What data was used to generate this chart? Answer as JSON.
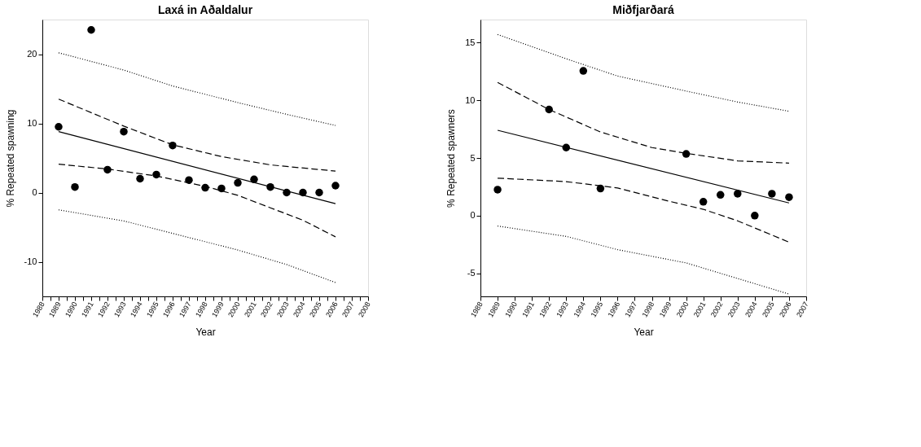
{
  "chart_data": [
    {
      "type": "scatter",
      "title": "Laxá in Aðaldalur",
      "xlabel": "Year",
      "ylabel": "% Repeated spawning",
      "xlim": [
        1988,
        2008
      ],
      "ylim": [
        -15,
        25
      ],
      "xticks": [
        1988,
        {
          "value": 1988.5,
          "label": null
        },
        1989,
        {
          "value": 1989.5,
          "label": null
        },
        1990,
        {
          "value": 1990.5,
          "label": null
        },
        1991,
        {
          "value": 1991.5,
          "label": null
        },
        1992,
        {
          "value": 1992.5,
          "label": null
        },
        1993,
        {
          "value": 1993.5,
          "label": null
        },
        1994,
        {
          "value": 1994.5,
          "label": null
        },
        1995,
        {
          "value": 1995.5,
          "label": null
        },
        1996,
        {
          "value": 1996.5,
          "label": null
        },
        1997,
        {
          "value": 1997.5,
          "label": null
        },
        1998,
        {
          "value": 1998.5,
          "label": null
        },
        1999,
        {
          "value": 1999.5,
          "label": null
        },
        2000,
        {
          "value": 2000.5,
          "label": null
        },
        2001,
        {
          "value": 2001.5,
          "label": null
        },
        2002,
        {
          "value": 2002.5,
          "label": null
        },
        2003,
        {
          "value": 2003.5,
          "label": null
        },
        2004,
        {
          "value": 2004.5,
          "label": null
        },
        2005,
        {
          "value": 2005.5,
          "label": null
        },
        2006,
        {
          "value": 2006.5,
          "label": null
        },
        2007,
        {
          "value": 2007.5,
          "label": null
        },
        2008
      ],
      "yticks": [
        -10,
        0,
        10,
        20
      ],
      "grid": false,
      "series": [
        {
          "marker": "circle",
          "color": "#000000",
          "x": [
            1989,
            1990,
            1991,
            1992,
            1993,
            1994,
            1995,
            1996,
            1997,
            1998,
            1999,
            2000,
            2001,
            2002,
            2003,
            2004,
            2005,
            2006
          ],
          "values": [
            9.5,
            0.8,
            23.5,
            3.3,
            8.8,
            2.0,
            2.6,
            6.8,
            1.8,
            0.7,
            0.6,
            1.4,
            1.9,
            0.8,
            0.0,
            0.0,
            0.0,
            1.0
          ]
        },
        {
          "type": "line",
          "marker": "none",
          "line_style": "solid",
          "color": "#000000",
          "x": [
            1989,
            2006
          ],
          "values": [
            8.8,
            -1.6
          ]
        },
        {
          "type": "line",
          "marker": "none",
          "line_style": "dashed",
          "color": "#000000",
          "x": [
            1989,
            1993,
            1996,
            1999,
            2002,
            2006
          ],
          "values": [
            13.5,
            9.6,
            6.9,
            5.2,
            4.0,
            3.1
          ]
        },
        {
          "type": "line",
          "marker": "none",
          "line_style": "dashed",
          "color": "#000000",
          "x": [
            1989,
            1992,
            1995,
            1998,
            2000,
            2002,
            2004,
            2006
          ],
          "values": [
            4.1,
            3.4,
            2.4,
            0.9,
            -0.4,
            -2.2,
            -4.0,
            -6.4
          ]
        },
        {
          "type": "line",
          "marker": "none",
          "line_style": "dotted",
          "color": "#000000",
          "x": [
            1989,
            1993,
            1996,
            2000,
            2003,
            2006
          ],
          "values": [
            20.2,
            17.7,
            15.4,
            13.0,
            11.3,
            9.7
          ]
        },
        {
          "type": "line",
          "marker": "none",
          "line_style": "dotted",
          "color": "#000000",
          "x": [
            1989,
            1993,
            1996,
            2000,
            2003,
            2006
          ],
          "values": [
            -2.5,
            -4.1,
            -5.9,
            -8.3,
            -10.4,
            -13.0
          ]
        }
      ]
    },
    {
      "type": "scatter",
      "title": "Miðfjarðará",
      "xlabel": "Year",
      "ylabel": "% Repeated spawners",
      "xlim": [
        1988,
        2007
      ],
      "ylim": [
        -7,
        17
      ],
      "xticks": [
        1988,
        1989,
        1990,
        1991,
        1992,
        1993,
        1994,
        1995,
        1996,
        1997,
        1998,
        1999,
        2000,
        2001,
        2002,
        2003,
        2004,
        2005,
        2006,
        2007
      ],
      "yticks": [
        -5,
        0,
        5,
        10,
        15
      ],
      "grid": false,
      "series": [
        {
          "marker": "circle",
          "color": "#000000",
          "x": [
            1989,
            1992,
            1993,
            1994,
            1995,
            2000,
            2001,
            2002,
            2003,
            2004,
            2005,
            2006
          ],
          "values": [
            2.25,
            9.2,
            5.9,
            12.55,
            2.35,
            5.35,
            1.2,
            1.8,
            1.9,
            0.0,
            1.9,
            1.6
          ]
        },
        {
          "type": "line",
          "marker": "none",
          "line_style": "solid",
          "color": "#000000",
          "x": [
            1989,
            2006
          ],
          "values": [
            7.4,
            1.1
          ]
        },
        {
          "type": "line",
          "marker": "none",
          "line_style": "dashed",
          "color": "#000000",
          "x": [
            1989,
            1992,
            1995,
            1998,
            2000,
            2003,
            2006
          ],
          "values": [
            11.55,
            9.2,
            7.25,
            5.9,
            5.4,
            4.75,
            4.55
          ]
        },
        {
          "type": "line",
          "marker": "none",
          "line_style": "dashed",
          "color": "#000000",
          "x": [
            1989,
            1993,
            1996,
            1999,
            2001,
            2003,
            2006
          ],
          "values": [
            3.25,
            2.95,
            2.4,
            1.25,
            0.55,
            -0.45,
            -2.3
          ]
        },
        {
          "type": "line",
          "marker": "none",
          "line_style": "dotted",
          "color": "#000000",
          "x": [
            1989,
            1993,
            1996,
            2000,
            2003,
            2006
          ],
          "values": [
            15.7,
            13.6,
            12.1,
            10.8,
            9.85,
            9.05
          ]
        },
        {
          "type": "line",
          "marker": "none",
          "line_style": "dotted",
          "color": "#000000",
          "x": [
            1989,
            1993,
            1996,
            2000,
            2003,
            2006
          ],
          "values": [
            -0.9,
            -1.8,
            -2.95,
            -4.1,
            -5.45,
            -6.8
          ]
        }
      ]
    }
  ]
}
